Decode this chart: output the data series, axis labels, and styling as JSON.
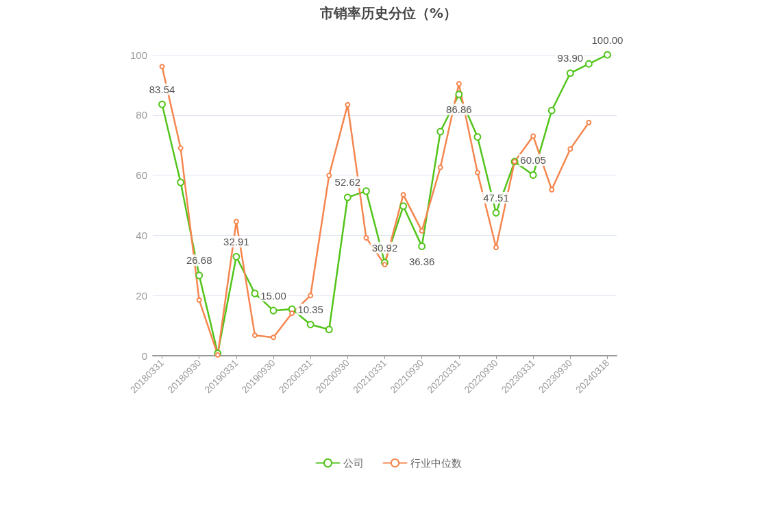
{
  "chart_data": {
    "type": "line",
    "title": "市销率历史分位（%）",
    "categories": [
      "20180331",
      null,
      "20180930",
      null,
      "20190331",
      null,
      "20190930",
      null,
      "20200331",
      null,
      "20200930",
      null,
      "20210331",
      null,
      "20210930",
      null,
      "20220331",
      null,
      "20220930",
      null,
      "20230331",
      null,
      "20230930",
      null,
      "20240318"
    ],
    "series": [
      {
        "name": "公司",
        "color": "#52c41a",
        "values": [
          83.54,
          57.6,
          26.68,
          0.8,
          32.91,
          20.7,
          15.0,
          15.5,
          10.35,
          8.7,
          52.62,
          54.7,
          30.92,
          49.7,
          36.36,
          74.5,
          86.86,
          72.7,
          47.51,
          64.5,
          60.05,
          81.5,
          93.9,
          97.0,
          100.0
        ],
        "value_labels": [
          "83.54",
          null,
          "26.68",
          null,
          "32.91",
          null,
          "15.00",
          null,
          "10.35",
          null,
          "52.62",
          null,
          "30.92",
          null,
          "36.36",
          null,
          "86.86",
          null,
          "47.51",
          null,
          "60.05",
          null,
          "93.90",
          null,
          "100.00"
        ]
      },
      {
        "name": "行业中位数",
        "color": "#f5864f",
        "values": [
          96.1,
          69.0,
          18.5,
          0.3,
          44.6,
          6.8,
          6.1,
          14.1,
          20.0,
          59.9,
          83.4,
          39.2,
          30.3,
          53.5,
          41.5,
          62.6,
          90.4,
          60.9,
          36.0,
          64.5,
          73.0,
          55.2,
          68.7,
          77.5,
          null
        ]
      }
    ],
    "ylim": [
      0,
      100
    ],
    "yticks": [
      0,
      20,
      40,
      60,
      80,
      100
    ],
    "grid": "y",
    "legend": "bottom",
    "marker": "circle",
    "line_style": "solid"
  }
}
